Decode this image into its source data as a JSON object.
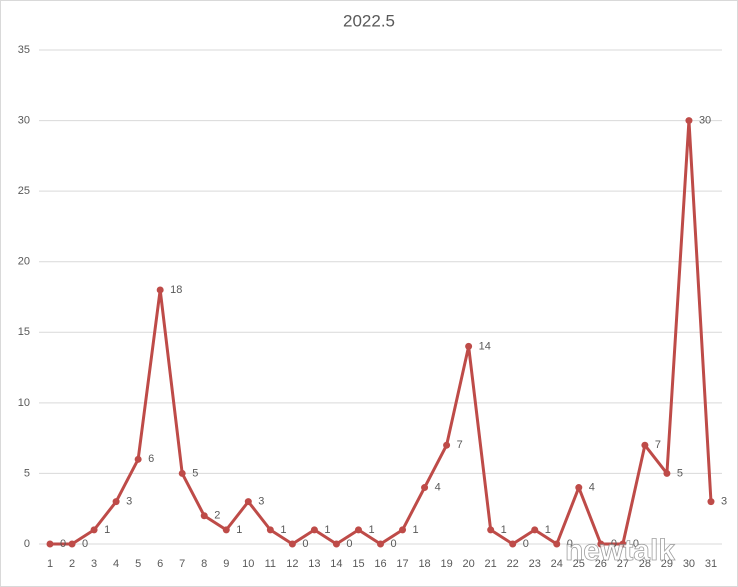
{
  "chart_data": {
    "type": "line",
    "title": "2022.5",
    "categories": [
      "1",
      "2",
      "3",
      "4",
      "5",
      "6",
      "7",
      "8",
      "9",
      "10",
      "11",
      "12",
      "13",
      "14",
      "15",
      "16",
      "17",
      "18",
      "19",
      "20",
      "21",
      "22",
      "23",
      "24",
      "25",
      "26",
      "27",
      "28",
      "29",
      "30",
      "31"
    ],
    "values": [
      0,
      0,
      1,
      3,
      6,
      18,
      5,
      2,
      1,
      3,
      1,
      0,
      1,
      0,
      1,
      0,
      1,
      4,
      7,
      14,
      1,
      0,
      1,
      0,
      4,
      0,
      0,
      7,
      5,
      30,
      3
    ],
    "color": "#be4b48",
    "ylim": [
      0,
      35
    ],
    "yticks": [
      0,
      5,
      10,
      15,
      20,
      25,
      30,
      35
    ],
    "grid": true,
    "data_labels": true,
    "watermark": "newtalk"
  }
}
